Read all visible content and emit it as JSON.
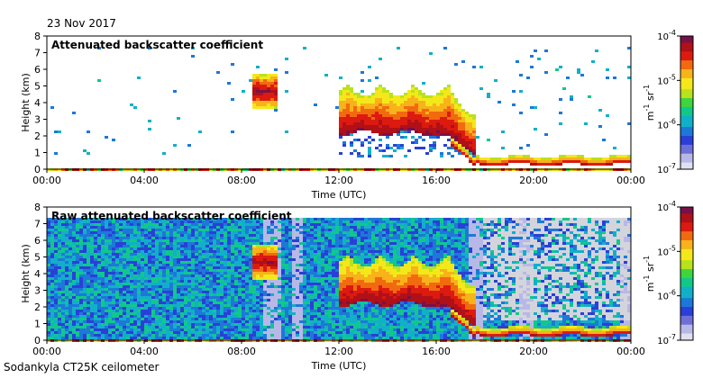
{
  "date": "23 Nov 2017",
  "footer": "Sodankyla CT25K ceilometer",
  "chart_data": [
    {
      "type": "heatmap",
      "title": "Attenuated backscatter coefficient",
      "xlabel": "Time (UTC)",
      "ylabel": "Height (km)",
      "x_ticks": [
        "00:00",
        "04:00",
        "08:00",
        "12:00",
        "16:00",
        "20:00",
        "00:00"
      ],
      "xlim_hours": [
        0,
        24
      ],
      "y_ticks": [
        "0",
        "1",
        "2",
        "3",
        "4",
        "5",
        "6",
        "7",
        "8"
      ],
      "ylim": [
        0,
        8
      ],
      "colorbar": {
        "label_base": "m",
        "label_exp1": "-1",
        "label_mid": " sr",
        "label_exp2": "-1",
        "scale": "log",
        "ticks": [
          {
            "base": "10",
            "exp": "-4"
          },
          {
            "base": "10",
            "exp": "-5"
          },
          {
            "base": "10",
            "exp": "-6"
          },
          {
            "base": "10",
            "exp": "-7"
          }
        ],
        "range": [
          1e-07,
          0.0001
        ]
      },
      "features": [
        {
          "kind": "cloud_patch",
          "start_h": 8.3,
          "end_h": 9.4,
          "base_km": 3.7,
          "top_km": 5.8
        },
        {
          "kind": "cloud_layer",
          "start_h": 11.9,
          "end_h": 17.6,
          "base_km": 2.5,
          "top_km": 5.2
        },
        {
          "kind": "descending_layer",
          "start_h": 16.0,
          "end_h": 24.0,
          "from_km": 2.5,
          "to_km": 0.6
        }
      ]
    },
    {
      "type": "heatmap",
      "title": "Raw attenuated backscatter coefficient",
      "xlabel": "Time (UTC)",
      "ylabel": "Height (km)",
      "x_ticks": [
        "00:00",
        "04:00",
        "08:00",
        "12:00",
        "16:00",
        "20:00",
        "00:00"
      ],
      "xlim_hours": [
        0,
        24
      ],
      "y_ticks": [
        "0",
        "1",
        "2",
        "3",
        "4",
        "5",
        "6",
        "7",
        "8"
      ],
      "ylim": [
        0,
        8
      ],
      "colorbar": {
        "label_base": "m",
        "label_exp1": "-1",
        "label_mid": " sr",
        "label_exp2": "-1",
        "scale": "log",
        "ticks": [
          {
            "base": "10",
            "exp": "-4"
          },
          {
            "base": "10",
            "exp": "-5"
          },
          {
            "base": "10",
            "exp": "-6"
          },
          {
            "base": "10",
            "exp": "-7"
          }
        ],
        "range": [
          1e-07,
          0.0001
        ]
      },
      "features": [
        {
          "kind": "noise_background",
          "start_h": 0,
          "end_h": 24,
          "base_km": 0,
          "top_km": 7.5
        },
        {
          "kind": "cloud_patch",
          "start_h": 8.3,
          "end_h": 9.4,
          "base_km": 3.7,
          "top_km": 5.8
        },
        {
          "kind": "cloud_layer",
          "start_h": 11.9,
          "end_h": 17.6,
          "base_km": 2.5,
          "top_km": 5.2
        },
        {
          "kind": "descending_layer",
          "start_h": 16.0,
          "end_h": 24.0,
          "from_km": 2.5,
          "to_km": 0.6
        }
      ]
    }
  ]
}
